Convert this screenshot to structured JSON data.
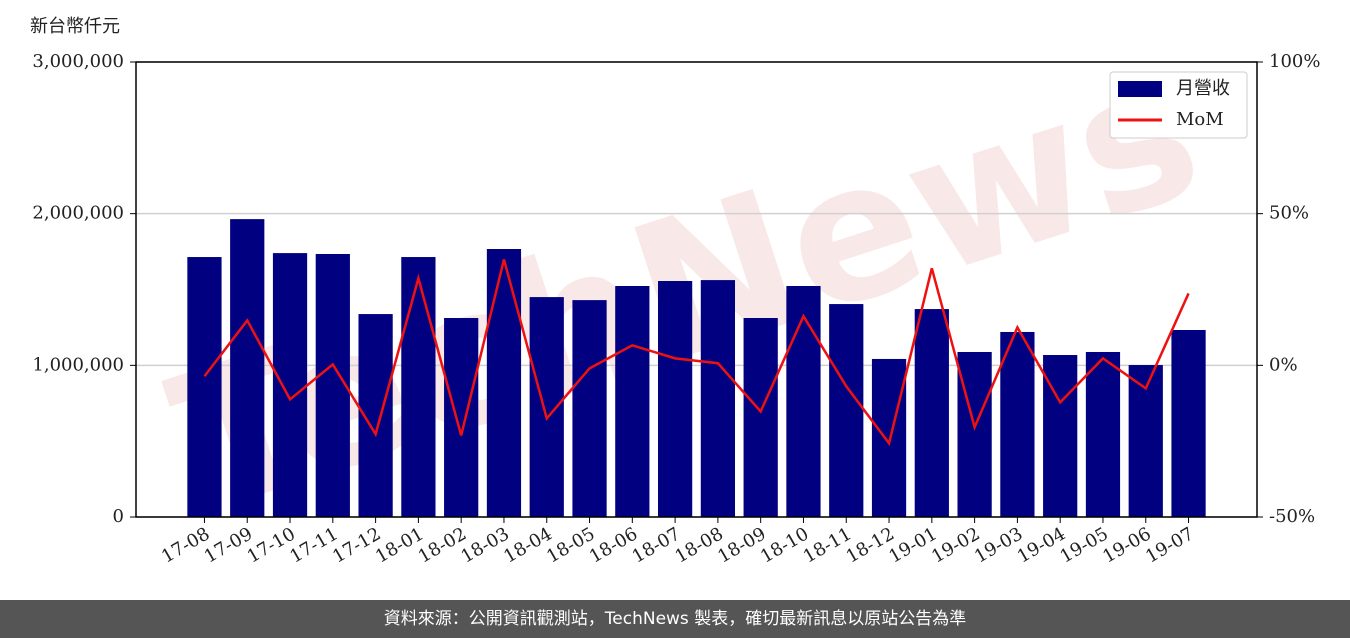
{
  "chart_data": {
    "type": "bar_line",
    "ylabel": "新台幣仟元",
    "watermark": "TechNews",
    "footer": "資料來源：公開資訊觀測站，TechNews 製表，確切最新訊息以原站公告為準",
    "categories": [
      "17-08",
      "17-09",
      "17-10",
      "17-11",
      "17-12",
      "18-01",
      "18-02",
      "18-03",
      "18-04",
      "18-05",
      "18-06",
      "18-07",
      "18-08",
      "18-09",
      "18-10",
      "18-11",
      "18-12",
      "19-01",
      "19-02",
      "19-03",
      "19-04",
      "19-05",
      "19-06",
      "19-07"
    ],
    "series": [
      {
        "name": "月營收",
        "type": "bar",
        "color": "#000080",
        "values": [
          1714000,
          1964000,
          1740000,
          1734000,
          1338000,
          1714000,
          1312000,
          1767000,
          1450000,
          1430000,
          1523000,
          1556000,
          1562000,
          1312000,
          1523000,
          1404000,
          1042000,
          1371000,
          1088000,
          1220000,
          1068000,
          1088000,
          1002000,
          1233000
        ]
      },
      {
        "name": "MoM",
        "type": "line",
        "color": "#ee1111",
        "axis": "y2",
        "values": [
          -3.6,
          14.8,
          -11.2,
          0.3,
          -22.7,
          28.7,
          -23.1,
          34.9,
          -17.5,
          -1.0,
          6.6,
          2.3,
          0.7,
          -15.2,
          16.2,
          -6.9,
          -25.7,
          32.0,
          -20.4,
          12.5,
          -12.2,
          2.3,
          -7.6,
          23.7
        ]
      }
    ],
    "ylim": [
      0,
      3000000
    ],
    "yticks": [
      0,
      {
        "value": 1000000,
        "label": "1,000,000"
      },
      {
        "value": 2000000,
        "label": "2,000,000"
      },
      {
        "value": 3000000,
        "label": "3,000,000"
      }
    ],
    "y2lim": [
      -50,
      100
    ],
    "y2ticks": [
      {
        "value": -50,
        "label": "-50%"
      },
      {
        "value": 0,
        "label": "0%"
      },
      {
        "value": 50,
        "label": "50%"
      },
      {
        "value": 100,
        "label": "100%"
      }
    ],
    "grid": true,
    "legend": "upper-right"
  }
}
